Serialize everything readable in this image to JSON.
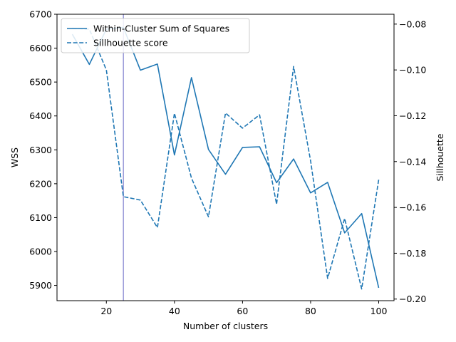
{
  "chart_data": {
    "type": "line",
    "xlabel": "Number of clusters",
    "ylabel_left": "WSS",
    "ylabel_right": "Sillhouette",
    "xlim": [
      5.5,
      104.5
    ],
    "ylim_left": [
      5855,
      6700
    ],
    "ylim_right": [
      -0.2007,
      -0.0757
    ],
    "x_ticks": [
      20,
      40,
      60,
      80,
      100
    ],
    "y_ticks_left": [
      5900,
      6000,
      6100,
      6200,
      6300,
      6400,
      6500,
      6600,
      6700
    ],
    "y_ticks_right": [
      -0.08,
      -0.1,
      -0.12,
      -0.14,
      -0.16,
      -0.18,
      -0.2
    ],
    "y_tick_labels_right": [
      "−0.08",
      "−0.10",
      "−0.12",
      "−0.14",
      "−0.16",
      "−0.18",
      "−0.20"
    ],
    "vline_x": 25,
    "vline_color": "#8080d0",
    "line_color": "#1f77b4",
    "legend_position": "top-left",
    "series": [
      {
        "name": "Within-Cluster Sum of Squares",
        "axis": "left",
        "style": "solid",
        "x": [
          10,
          15,
          20,
          25,
          30,
          35,
          40,
          45,
          50,
          55,
          60,
          65,
          70,
          75,
          80,
          85,
          90,
          95,
          100
        ],
        "values": [
          6641,
          6552,
          6656,
          6661,
          6535,
          6553,
          6285,
          6513,
          6301,
          6228,
          6307,
          6309,
          6203,
          6273,
          6173,
          6204,
          6055,
          6112,
          5893
        ]
      },
      {
        "name": "Sillhouette score",
        "axis": "right",
        "style": "dashed",
        "x": [
          10,
          15,
          20,
          25,
          30,
          35,
          40,
          45,
          50,
          55,
          60,
          65,
          70,
          75,
          80,
          85,
          90,
          95,
          100
        ],
        "values": [
          -0.0818,
          -0.0822,
          -0.1,
          -0.1553,
          -0.1568,
          -0.1688,
          -0.1189,
          -0.1472,
          -0.1641,
          -0.1188,
          -0.1254,
          -0.1196,
          -0.1586,
          -0.0985,
          -0.1397,
          -0.191,
          -0.1648,
          -0.1956,
          -0.1479
        ]
      }
    ]
  }
}
